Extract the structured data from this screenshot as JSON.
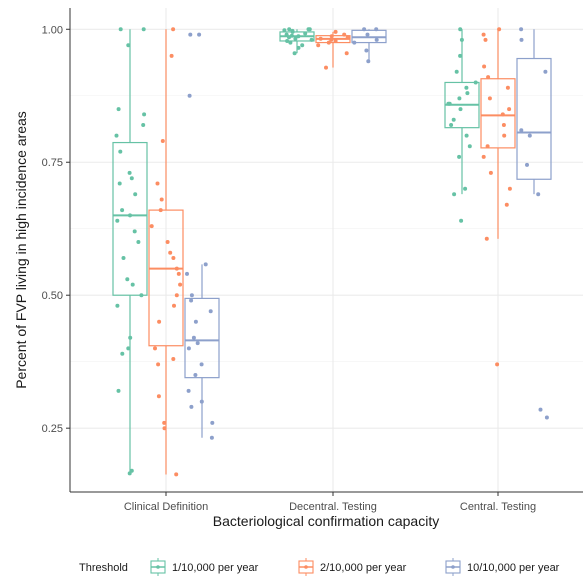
{
  "chart_data": {
    "type": "box",
    "title": "",
    "xlabel": "Bacteriological confirmation capacity",
    "ylabel": "Percent of FVP living in high incidence areas",
    "categories": [
      "Clinical Definition",
      "Decentral. Testing",
      "Central. Testing"
    ],
    "ylim": [
      0.13,
      1.04
    ],
    "yticks": [
      0.25,
      0.5,
      0.75,
      1.0
    ],
    "ytick_labels": [
      "0.25",
      "0.50",
      "0.75",
      "1.00"
    ],
    "grid": true,
    "legend": {
      "title": "Threshold",
      "placement": "bottom"
    },
    "series": [
      {
        "name": "1/10,000 per year",
        "color": "#66c2a5",
        "boxes": [
          {
            "min": 0.165,
            "q1": 0.5,
            "median": 0.65,
            "q3": 0.787,
            "max": 1.0
          },
          {
            "min": 0.955,
            "q1": 0.978,
            "median": 0.987,
            "q3": 0.995,
            "max": 1.0
          },
          {
            "min": 0.69,
            "q1": 0.815,
            "median": 0.858,
            "q3": 0.9,
            "max": 1.0
          }
        ],
        "points": [
          [
            0.165,
            0.17,
            0.32,
            0.39,
            0.4,
            0.42,
            0.48,
            0.5,
            0.52,
            0.53,
            0.57,
            0.6,
            0.62,
            0.64,
            0.65,
            0.66,
            0.69,
            0.71,
            0.72,
            0.73,
            0.77,
            0.8,
            0.82,
            0.84,
            0.85,
            0.97,
            1.0,
            1.0
          ],
          [
            0.955,
            0.965,
            0.97,
            0.975,
            0.978,
            0.98,
            0.982,
            0.985,
            0.987,
            0.988,
            0.99,
            0.992,
            0.995,
            0.997,
            0.998,
            1.0,
            1.0,
            1.0
          ],
          [
            0.64,
            0.69,
            0.7,
            0.76,
            0.78,
            0.8,
            0.82,
            0.83,
            0.85,
            0.86,
            0.86,
            0.87,
            0.88,
            0.89,
            0.9,
            0.92,
            0.95,
            0.98,
            1.0
          ]
        ]
      },
      {
        "name": "2/10,000 per year",
        "color": "#fc8d62",
        "boxes": [
          {
            "min": 0.163,
            "q1": 0.405,
            "median": 0.55,
            "q3": 0.66,
            "max": 1.0
          },
          {
            "min": 0.928,
            "q1": 0.975,
            "median": 0.982,
            "q3": 0.988,
            "max": 0.995
          },
          {
            "min": 0.606,
            "q1": 0.777,
            "median": 0.838,
            "q3": 0.907,
            "max": 1.0
          }
        ],
        "points": [
          [
            0.163,
            0.25,
            0.26,
            0.31,
            0.37,
            0.38,
            0.4,
            0.45,
            0.48,
            0.5,
            0.52,
            0.54,
            0.55,
            0.57,
            0.58,
            0.6,
            0.63,
            0.66,
            0.68,
            0.71,
            0.79,
            0.95,
            1.0
          ],
          [
            0.928,
            0.955,
            0.97,
            0.975,
            0.978,
            0.98,
            0.982,
            0.985,
            0.987,
            0.99,
            0.995
          ],
          [
            0.37,
            0.606,
            0.67,
            0.7,
            0.73,
            0.76,
            0.78,
            0.8,
            0.82,
            0.84,
            0.85,
            0.87,
            0.89,
            0.91,
            0.93,
            0.98,
            0.99,
            1.0
          ]
        ]
      },
      {
        "name": "10/10,000 per year",
        "color": "#8da0cb",
        "boxes": [
          {
            "min": 0.232,
            "q1": 0.345,
            "median": 0.415,
            "q3": 0.494,
            "max": 0.558
          },
          {
            "min": 0.94,
            "q1": 0.975,
            "median": 0.985,
            "q3": 0.998,
            "max": 1.0
          },
          {
            "min": 0.69,
            "q1": 0.718,
            "median": 0.806,
            "q3": 0.945,
            "max": 1.0
          }
        ],
        "points": [
          [
            0.232,
            0.26,
            0.29,
            0.3,
            0.32,
            0.35,
            0.37,
            0.4,
            0.41,
            0.42,
            0.45,
            0.47,
            0.49,
            0.5,
            0.54,
            0.558,
            0.875,
            0.99,
            0.99
          ],
          [
            0.94,
            0.96,
            0.975,
            0.98,
            0.99,
            1.0,
            1.0
          ],
          [
            0.27,
            0.285,
            0.69,
            0.745,
            0.8,
            0.81,
            0.92,
            0.98,
            1.0
          ]
        ]
      }
    ]
  }
}
